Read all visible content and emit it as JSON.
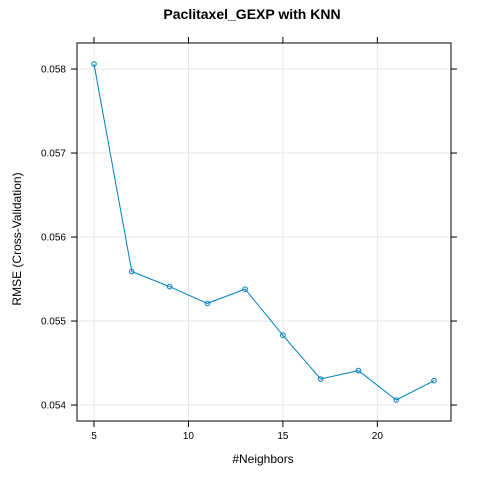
{
  "chart_data": {
    "type": "line",
    "title": "Paclitaxel_GEXP with KNN",
    "xlabel": "#Neighbors",
    "ylabel": "RMSE (Cross-Validation)",
    "x": [
      5,
      7,
      9,
      11,
      13,
      15,
      17,
      19,
      21,
      23
    ],
    "series": [
      {
        "values": [
          0.05806,
          0.05559,
          0.05541,
          0.05521,
          0.05538,
          0.05483,
          0.05431,
          0.05441,
          0.05406,
          0.05429
        ]
      }
    ],
    "xlim": [
      4.1,
      23.9
    ],
    "ylim": [
      0.05381,
      0.05831
    ],
    "xticks": [
      5,
      10,
      15,
      20
    ],
    "xtick_labels": [
      "5",
      "10",
      "15",
      "20"
    ],
    "yticks": [
      0.054,
      0.055,
      0.056,
      0.057,
      0.058
    ],
    "ytick_labels": [
      "0.054",
      "0.055",
      "0.056",
      "0.057",
      "0.058"
    ],
    "grid": true,
    "colors": {
      "line": "#0080C0",
      "grid": "#E6E6E6",
      "frame": "#000000"
    }
  }
}
